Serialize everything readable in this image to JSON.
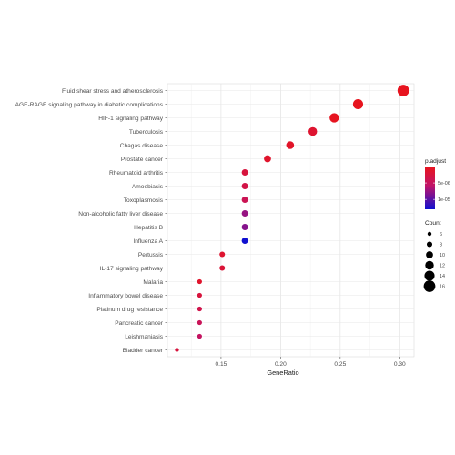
{
  "chart_data": {
    "type": "scatter",
    "title": "",
    "xlabel": "GeneRatio",
    "ylabel": "",
    "xlim": [
      0.105,
      0.312
    ],
    "x_ticks": [
      0.15,
      0.2,
      0.25,
      0.3
    ],
    "x_tick_labels": [
      "0.15",
      "0.20",
      "0.25",
      "0.30"
    ],
    "grid": true,
    "legend_position": "right",
    "color_scale": {
      "title": "p.adjust",
      "low_color": "#e8141c",
      "high_color": "#1010d0",
      "tick_labels": [
        "5e-06",
        "1e-05"
      ],
      "range": [
        0,
        1.3e-05
      ],
      "ticks": [
        5e-06,
        1e-05
      ]
    },
    "size_scale": {
      "title": "Count",
      "values": [
        6,
        8,
        10,
        12,
        14,
        16
      ],
      "labels": [
        "6",
        "8",
        "10",
        "12",
        "14",
        "16"
      ]
    },
    "points": [
      {
        "term": "Fluid shear stress and atherosclerosis",
        "x": 0.303,
        "count": 16,
        "padj": 2e-07
      },
      {
        "term": "AGE-RAGE signaling pathway in diabetic complications",
        "x": 0.265,
        "count": 14,
        "padj": 1.5e-07
      },
      {
        "term": "HIF-1 signaling pathway",
        "x": 0.245,
        "count": 13,
        "padj": 3e-07
      },
      {
        "term": "Tuberculosis",
        "x": 0.227,
        "count": 12,
        "padj": 1.5e-06
      },
      {
        "term": "Chagas disease",
        "x": 0.208,
        "count": 11,
        "padj": 1e-06
      },
      {
        "term": "Prostate cancer",
        "x": 0.189,
        "count": 10,
        "padj": 1.2e-06
      },
      {
        "term": "Rheumatoid arthritis",
        "x": 0.17,
        "count": 9,
        "padj": 2.5e-06
      },
      {
        "term": "Amoebiasis",
        "x": 0.17,
        "count": 9,
        "padj": 3.2e-06
      },
      {
        "term": "Toxoplasmosis",
        "x": 0.17,
        "count": 9,
        "padj": 4.2e-06
      },
      {
        "term": "Non-alcoholic fatty liver disease",
        "x": 0.17,
        "count": 9,
        "padj": 7.5e-06
      },
      {
        "term": "Hepatitis B",
        "x": 0.17,
        "count": 9,
        "padj": 8.2e-06
      },
      {
        "term": "Influenza A",
        "x": 0.17,
        "count": 9,
        "padj": 1.3e-05
      },
      {
        "term": "Pertussis",
        "x": 0.151,
        "count": 8,
        "padj": 1.5e-06
      },
      {
        "term": "IL-17 signaling pathway",
        "x": 0.151,
        "count": 8,
        "padj": 2e-06
      },
      {
        "term": "Malaria",
        "x": 0.132,
        "count": 7,
        "padj": 1.2e-06
      },
      {
        "term": "Inflammatory bowel disease",
        "x": 0.132,
        "count": 7,
        "padj": 2.5e-06
      },
      {
        "term": "Platinum drug resistance",
        "x": 0.132,
        "count": 7,
        "padj": 3.5e-06
      },
      {
        "term": "Pancreatic cancer",
        "x": 0.132,
        "count": 7,
        "padj": 4.5e-06
      },
      {
        "term": "Leishmaniasis",
        "x": 0.132,
        "count": 7,
        "padj": 5.2e-06
      },
      {
        "term": "Bladder cancer",
        "x": 0.113,
        "count": 6,
        "padj": 2.5e-06
      }
    ]
  }
}
